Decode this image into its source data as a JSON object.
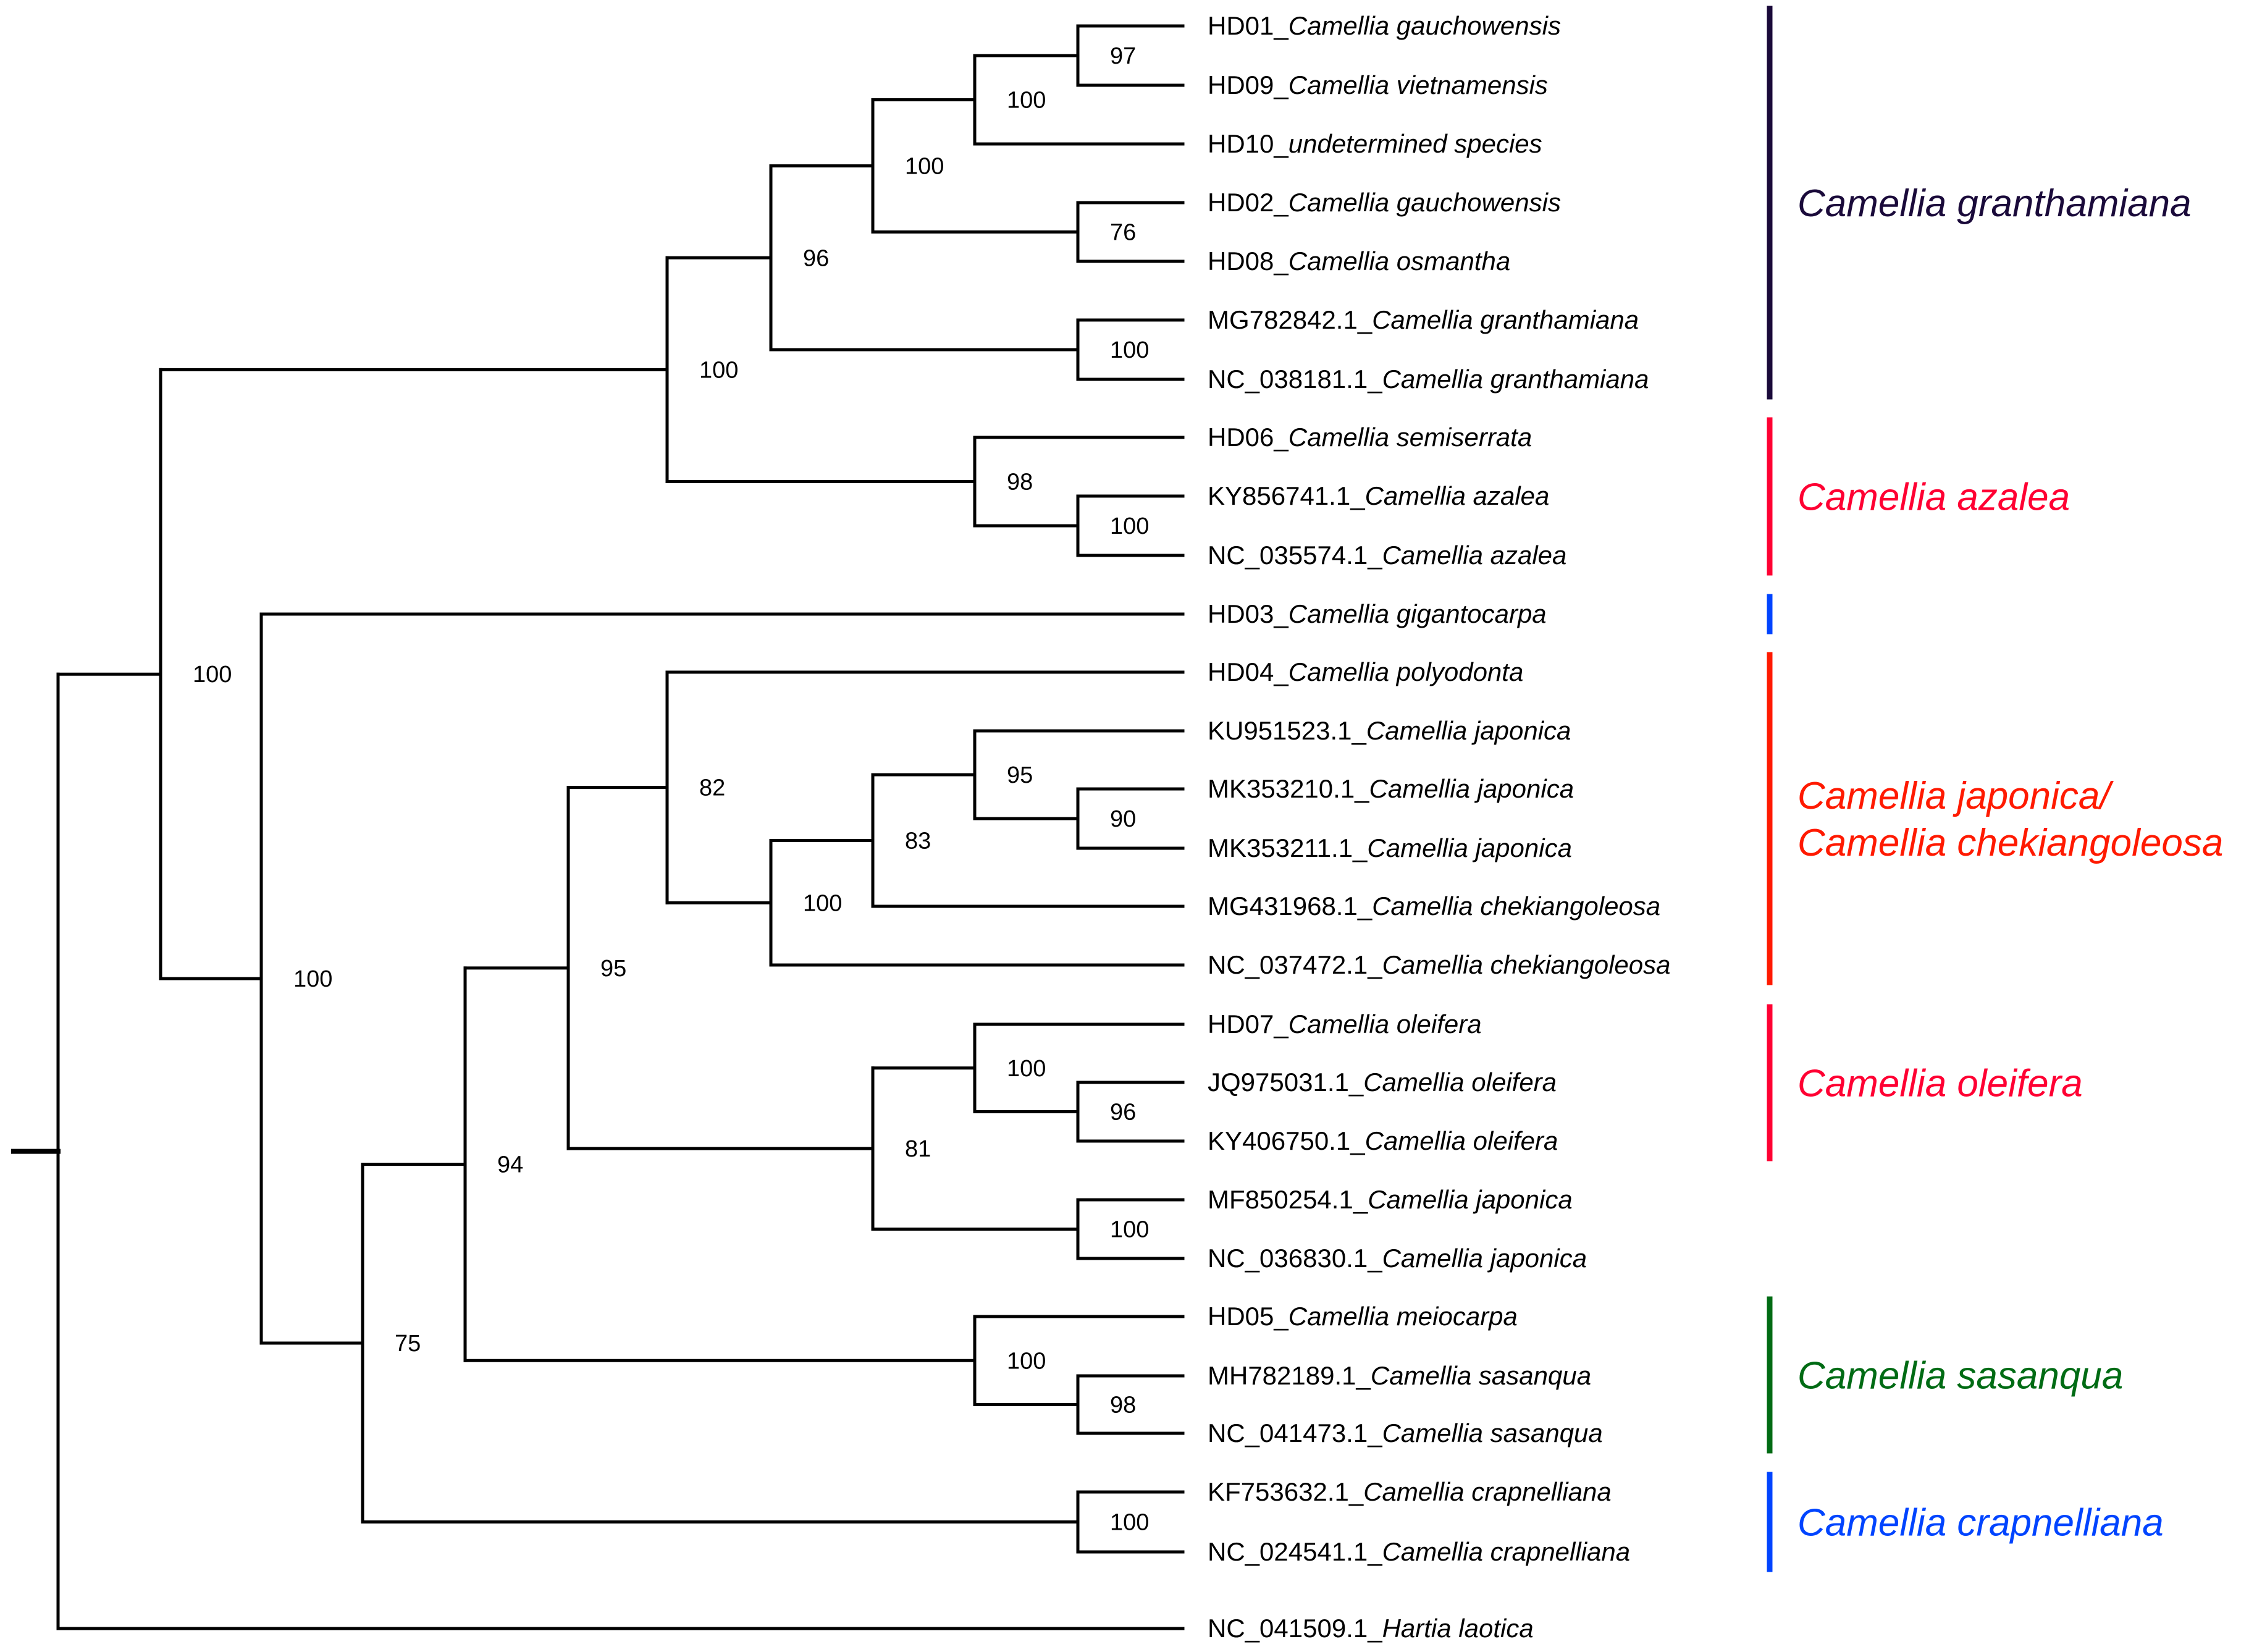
{
  "tree": {
    "taxa": [
      {
        "id": "t0",
        "acc": "HD01_",
        "species": "Camellia gauchowensis"
      },
      {
        "id": "t1",
        "acc": "HD09_",
        "species": "Camellia vietnamensis"
      },
      {
        "id": "t2",
        "acc": "HD10_",
        "species": "undetermined species"
      },
      {
        "id": "t3",
        "acc": "HD02_",
        "species": "Camellia gauchowensis"
      },
      {
        "id": "t4",
        "acc": "HD08_",
        "species": "Camellia osmantha"
      },
      {
        "id": "t5",
        "acc": "MG782842.1_",
        "species": "Camellia granthamiana"
      },
      {
        "id": "t6",
        "acc": "NC_038181.1_",
        "species": "Camellia granthamiana"
      },
      {
        "id": "t7",
        "acc": "HD06_",
        "species": "Camellia semiserrata"
      },
      {
        "id": "t8",
        "acc": "KY856741.1_",
        "species": "Camellia azalea"
      },
      {
        "id": "t9",
        "acc": "NC_035574.1_",
        "species": "Camellia azalea"
      },
      {
        "id": "t10",
        "acc": "HD03_",
        "species": "Camellia gigantocarpa"
      },
      {
        "id": "t11",
        "acc": "HD04_",
        "species": "Camellia polyodonta"
      },
      {
        "id": "t12",
        "acc": "KU951523.1_",
        "species": "Camellia japonica"
      },
      {
        "id": "t13",
        "acc": "MK353210.1_",
        "species": "Camellia japonica"
      },
      {
        "id": "t14",
        "acc": "MK353211.1_",
        "species": "Camellia japonica"
      },
      {
        "id": "t15",
        "acc": "MG431968.1_",
        "species": "Camellia chekiangoleosa"
      },
      {
        "id": "t16",
        "acc": "NC_037472.1_",
        "species": "Camellia chekiangoleosa"
      },
      {
        "id": "t17",
        "acc": "HD07_",
        "species": "Camellia oleifera"
      },
      {
        "id": "t18",
        "acc": "JQ975031.1_",
        "species": "Camellia oleifera"
      },
      {
        "id": "t19",
        "acc": "KY406750.1_",
        "species": "Camellia oleifera"
      },
      {
        "id": "t20",
        "acc": "MF850254.1_",
        "species": "Camellia japonica"
      },
      {
        "id": "t21",
        "acc": "NC_036830.1_",
        "species": "Camellia japonica"
      },
      {
        "id": "t22",
        "acc": "HD05_",
        "species": "Camellia meiocarpa"
      },
      {
        "id": "t23",
        "acc": "MH782189.1_",
        "species": "Camellia sasanqua"
      },
      {
        "id": "t24",
        "acc": "NC_041473.1_",
        "species": "Camellia sasanqua"
      },
      {
        "id": "t25",
        "acc": "KF753632.1_",
        "species": "Camellia crapnelliana"
      },
      {
        "id": "t26",
        "acc": "NC_024541.1_",
        "species": "Camellia crapnelliana"
      },
      {
        "id": "t27",
        "acc": "NC_041509.1_",
        "species": "Hartia laotica"
      }
    ],
    "nodes": [
      {
        "id": "n1",
        "depth": 11,
        "children": [
          "t0",
          "t1"
        ],
        "support": "97"
      },
      {
        "id": "n2",
        "depth": 10,
        "children": [
          "n1",
          "t2"
        ],
        "support": "100"
      },
      {
        "id": "n3",
        "depth": 11,
        "children": [
          "t3",
          "t4"
        ],
        "support": "76"
      },
      {
        "id": "n4",
        "depth": 9,
        "children": [
          "n2",
          "n3"
        ],
        "support": "100"
      },
      {
        "id": "n5",
        "depth": 11,
        "children": [
          "t5",
          "t6"
        ],
        "support": "100"
      },
      {
        "id": "n6",
        "depth": 8,
        "children": [
          "n4",
          "n5"
        ],
        "support": "96"
      },
      {
        "id": "n7",
        "depth": 11,
        "children": [
          "t8",
          "t9"
        ],
        "support": "100"
      },
      {
        "id": "n8",
        "depth": 10,
        "children": [
          "t7",
          "n7"
        ],
        "support": "98"
      },
      {
        "id": "n9",
        "depth": 7,
        "children": [
          "n6",
          "n8"
        ],
        "support": "100"
      },
      {
        "id": "n10",
        "depth": 11,
        "children": [
          "t13",
          "t14"
        ],
        "support": "90"
      },
      {
        "id": "n11",
        "depth": 10,
        "children": [
          "t12",
          "n10"
        ],
        "support": "95"
      },
      {
        "id": "n12",
        "depth": 9,
        "children": [
          "n11",
          "t15"
        ],
        "support": "83"
      },
      {
        "id": "n13",
        "depth": 8,
        "children": [
          "n12",
          "t16"
        ],
        "support": "100"
      },
      {
        "id": "n14",
        "depth": 7,
        "children": [
          "t11",
          "n13"
        ],
        "support": "82"
      },
      {
        "id": "n15",
        "depth": 11,
        "children": [
          "t18",
          "t19"
        ],
        "support": "96"
      },
      {
        "id": "n16",
        "depth": 10,
        "children": [
          "t17",
          "n15"
        ],
        "support": "100"
      },
      {
        "id": "n17",
        "depth": 11,
        "children": [
          "t20",
          "t21"
        ],
        "support": "100"
      },
      {
        "id": "n18",
        "depth": 9,
        "children": [
          "n16",
          "n17"
        ],
        "support": "81"
      },
      {
        "id": "n19",
        "depth": 6,
        "children": [
          "n14",
          "n18"
        ],
        "support": "95"
      },
      {
        "id": "n20",
        "depth": 11,
        "children": [
          "t23",
          "t24"
        ],
        "support": "98"
      },
      {
        "id": "n21",
        "depth": 10,
        "children": [
          "t22",
          "n20"
        ],
        "support": "100"
      },
      {
        "id": "n22",
        "depth": 5,
        "children": [
          "n19",
          "n21"
        ],
        "support": "94"
      },
      {
        "id": "n23",
        "depth": 11,
        "children": [
          "t25",
          "t26"
        ],
        "support": "100"
      },
      {
        "id": "n24",
        "depth": 4,
        "children": [
          "n22",
          "n23"
        ],
        "support": "75"
      },
      {
        "id": "n25",
        "depth": 3,
        "children": [
          "t10",
          "n24"
        ],
        "support": "100"
      },
      {
        "id": "n26",
        "depth": 2,
        "children": [
          "n9",
          "n25"
        ],
        "support": "100"
      },
      {
        "id": "n27",
        "depth": 1,
        "children": [
          "n26",
          "t27"
        ],
        "support": ""
      }
    ],
    "root": "n27",
    "groups": [
      {
        "from": 0,
        "to": 6,
        "color": "#1a0a3a",
        "label_lines": [
          "Camellia granthamiana"
        ]
      },
      {
        "from": 7,
        "to": 9,
        "color": "#ff0033",
        "label_lines": [
          "Camellia azalea"
        ]
      },
      {
        "from": 10,
        "to": 10,
        "color": "#0044ff",
        "label_lines": []
      },
      {
        "from": 11,
        "to": 16,
        "color": "#ff1a00",
        "label_lines": [
          "Camellia japonica/",
          "Camellia chekiangoleosa"
        ]
      },
      {
        "from": 17,
        "to": 19,
        "color": "#ff0033",
        "label_lines": [
          "Camellia oleifera"
        ]
      },
      {
        "from": 22,
        "to": 24,
        "color": "#006b14",
        "label_lines": [
          "Camellia sasanqua"
        ]
      },
      {
        "from": 25,
        "to": 26,
        "color": "#0044ff",
        "label_lines": [
          "Camellia crapnelliana"
        ]
      }
    ]
  }
}
